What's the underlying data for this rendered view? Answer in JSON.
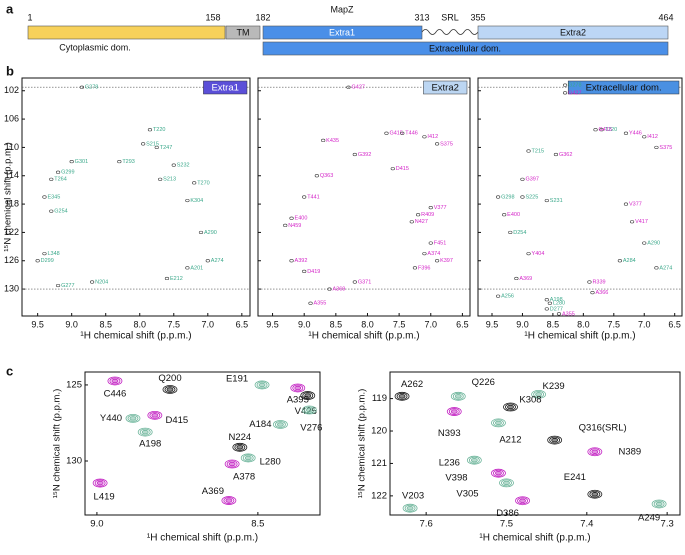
{
  "panel_labels": [
    "a",
    "b",
    "c"
  ],
  "domain_map": {
    "name": "MapZ",
    "residues": [
      1,
      158,
      182,
      313,
      355,
      464
    ],
    "segments": {
      "tm": "TM",
      "extra1": "Extra1",
      "srl": "SRL",
      "extra2": "Extra2",
      "cytoplasmic": "Cytoplasmic dom.",
      "extracellular": "Extracellular dom."
    }
  },
  "chart_data": [
    {
      "type": "scatter",
      "peak_style": "dot",
      "title": "Extra1",
      "title_box_color": "#5b4fd8",
      "title_text_color": "#ffffff",
      "xlabel": "¹H chemical shift (p.p.m.)",
      "ylabel": "¹⁵N chemical shift (p.p.m.)",
      "xlim": [
        6.38,
        9.73
      ],
      "x_inverted": true,
      "ylim": [
        100.2,
        133.8
      ],
      "y_inverted": true,
      "xticks": [
        9.5,
        {
          "value": 9,
          "label": "9.0"
        },
        8.5,
        {
          "value": 8,
          "label": "8.0"
        },
        7.5,
        {
          "value": 7,
          "label": "7.0"
        },
        6.5
      ],
      "yticks": [
        102,
        106,
        110,
        114,
        118,
        122,
        126,
        130
      ],
      "show_ytick_labels": true,
      "hlines": [
        101.5,
        130
      ],
      "labels": [
        "G278",
        "T220",
        "S215",
        "T247",
        "G301",
        "G299",
        "T264",
        "T293",
        "S232",
        "S213",
        "E345",
        "G254",
        "L348",
        "D299",
        "K304",
        "T270",
        "A290",
        "A274",
        "G277",
        "N204",
        "E212",
        "A201"
      ],
      "x": [
        8.85,
        7.85,
        7.95,
        7.75,
        9.0,
        9.2,
        9.3,
        8.3,
        7.5,
        7.7,
        9.4,
        9.3,
        9.4,
        9.5,
        7.3,
        7.2,
        7.1,
        7.0,
        9.2,
        8.7,
        7.6,
        7.3
      ],
      "values": [
        101.5,
        107.5,
        109.5,
        110,
        112,
        113.5,
        114.5,
        112,
        112.5,
        114.5,
        117,
        119,
        125,
        126,
        117.5,
        115,
        122,
        126,
        129.5,
        129,
        128.5,
        127
      ],
      "colors": [
        "#3aa88a",
        "#3aa88a",
        "#3aa88a",
        "#3aa88a",
        "#3aa88a",
        "#3aa88a",
        "#3aa88a",
        "#3aa88a",
        "#3aa88a",
        "#3aa88a",
        "#3aa88a",
        "#3aa88a",
        "#3aa88a",
        "#3aa88a",
        "#3aa88a",
        "#3aa88a",
        "#3aa88a",
        "#3aa88a",
        "#3aa88a",
        "#3aa88a",
        "#3aa88a",
        "#3aa88a"
      ]
    },
    {
      "type": "scatter",
      "peak_style": "dot",
      "title": "Extra2",
      "title_box_color": "#bcd6f2",
      "title_text_color": "#111111",
      "xlabel": "¹H chemical shift (p.p.m.)",
      "xlim": [
        6.38,
        9.73
      ],
      "x_inverted": true,
      "ylim": [
        100.2,
        133.8
      ],
      "y_inverted": true,
      "xticks": [
        9.5,
        {
          "value": 9,
          "label": "9.0"
        },
        8.5,
        {
          "value": 8,
          "label": "8.0"
        },
        7.5,
        {
          "value": 7,
          "label": "7.0"
        },
        6.5
      ],
      "yticks": [
        102,
        106,
        110,
        114,
        118,
        122,
        126,
        130
      ],
      "show_ytick_labels": false,
      "hlines": [
        101.5,
        130
      ],
      "labels": [
        "G427",
        "K435",
        "G415",
        "T446",
        "I412",
        "S375",
        "G392",
        "D415",
        "Q363",
        "T441",
        "E400",
        "N459",
        "V377",
        "R409",
        "N427",
        "F451",
        "A374",
        "K397",
        "A392",
        "D419",
        "F396",
        "A369",
        "G371",
        "A355"
      ],
      "x": [
        8.3,
        8.7,
        7.7,
        7.45,
        7.1,
        6.9,
        8.2,
        7.6,
        8.8,
        9.0,
        9.2,
        9.3,
        7.0,
        7.2,
        7.3,
        7.0,
        7.1,
        6.9,
        9.2,
        9.0,
        7.25,
        8.6,
        8.2,
        8.9
      ],
      "values": [
        101.5,
        109,
        108,
        108,
        108.5,
        109.5,
        111,
        113,
        114,
        117,
        120,
        121,
        118.5,
        119.5,
        120.5,
        123.5,
        125,
        126,
        126,
        127.5,
        127,
        130,
        129,
        132
      ],
      "colors": [
        "#d424c8",
        "#d424c8",
        "#d424c8",
        "#d424c8",
        "#d424c8",
        "#d424c8",
        "#d424c8",
        "#d424c8",
        "#d424c8",
        "#d424c8",
        "#d424c8",
        "#d424c8",
        "#d424c8",
        "#d424c8",
        "#d424c8",
        "#d424c8",
        "#d424c8",
        "#d424c8",
        "#d424c8",
        "#d424c8",
        "#d424c8",
        "#d424c8",
        "#d424c8",
        "#d424c8"
      ]
    },
    {
      "type": "scatter",
      "peak_style": "dot",
      "title": "Extracellular dom.",
      "title_box_color": "#4a90e2",
      "title_text_color": "#111111",
      "xlabel": "¹H chemical shift (p.p.m.)",
      "xlim": [
        6.38,
        9.73
      ],
      "x_inverted": true,
      "ylim": [
        100.2,
        133.8
      ],
      "y_inverted": true,
      "xticks": [
        9.5,
        {
          "value": 9,
          "label": "9.0"
        },
        8.5,
        {
          "value": 8,
          "label": "8.0"
        },
        7.5,
        {
          "value": 7,
          "label": "7.0"
        },
        6.5
      ],
      "yticks": [
        102,
        106,
        110,
        114,
        118,
        122,
        126,
        130
      ],
      "show_ytick_labels": false,
      "hlines": [
        101.5,
        130
      ],
      "labels": [
        "G278",
        "G427",
        "T220",
        "G415",
        "Y446",
        "I412",
        "S375",
        "T215",
        "G362",
        "G397",
        "G298",
        "S225",
        "S231",
        "V377",
        "E400",
        "D254",
        "V417",
        "Y404",
        "A290",
        "A284",
        "A274",
        "A369",
        "R339",
        "A366",
        "A256",
        "A198",
        "L280",
        "D277",
        "A355"
      ],
      "x": [
        8.3,
        8.3,
        7.7,
        7.8,
        7.3,
        7.0,
        6.8,
        8.9,
        8.45,
        9.0,
        9.4,
        9.0,
        8.6,
        7.3,
        9.3,
        9.2,
        7.2,
        8.9,
        7.0,
        7.4,
        6.8,
        9.1,
        7.9,
        7.85,
        9.4,
        8.6,
        8.55,
        8.6,
        8.4
      ],
      "values": [
        101.2,
        102.3,
        107.5,
        107.5,
        108,
        108.5,
        110,
        110.5,
        111,
        114.5,
        117,
        117,
        117.5,
        118,
        119.5,
        122,
        120.5,
        125,
        123.5,
        126,
        127,
        128.5,
        129,
        130.5,
        131,
        131.5,
        132,
        132.8,
        133.5
      ],
      "colors": [
        "#3aa88a",
        "#d424c8",
        "#3aa88a",
        "#d424c8",
        "#d424c8",
        "#d424c8",
        "#d424c8",
        "#3aa88a",
        "#d424c8",
        "#d424c8",
        "#3aa88a",
        "#3aa88a",
        "#3aa88a",
        "#d424c8",
        "#d424c8",
        "#3aa88a",
        "#d424c8",
        "#d424c8",
        "#3aa88a",
        "#3aa88a",
        "#3aa88a",
        "#d424c8",
        "#d424c8",
        "#d424c8",
        "#3aa88a",
        "#3aa88a",
        "#3aa88a",
        "#3aa88a",
        "#d424c8"
      ]
    },
    {
      "type": "scatter",
      "peak_style": "contour",
      "xlabel": "¹H chemical shift (p.p.m.)",
      "ylabel": "¹⁵N chemical shift (p.p.m.)",
      "xlim": [
        8.307,
        9.037
      ],
      "x_inverted": true,
      "ylim": [
        124.15,
        133.55
      ],
      "y_inverted": true,
      "xticks": [
        {
          "value": 9,
          "label": "9.0"
        },
        8.5
      ],
      "yticks": [
        125,
        130
      ],
      "show_ytick_labels": true,
      "labels": [
        "C446",
        "Q200",
        "E191",
        "A395",
        "V425",
        "V276",
        "Y440",
        "D415",
        "A198",
        "A184",
        "N224",
        "L280",
        "A378",
        "L419",
        "A369"
      ],
      "x": [
        8.944,
        8.773,
        8.487,
        8.376,
        8.345,
        8.34,
        8.888,
        8.82,
        8.85,
        8.43,
        8.556,
        8.53,
        8.58,
        8.99,
        8.59
      ],
      "values": [
        124.74,
        125.3,
        125.0,
        125.2,
        125.7,
        126.65,
        127.2,
        127.0,
        128.1,
        127.6,
        129.1,
        129.8,
        130.2,
        131.45,
        132.6
      ],
      "colors": [
        "#c21fc2",
        "#1a1a1a",
        "#6db59b",
        "#c21fc2",
        "#1a1a1a",
        "#6db59b",
        "#6db59b",
        "#c21fc2",
        "#6db59b",
        "#6db59b",
        "#1a1a1a",
        "#6db59b",
        "#c21fc2",
        "#c21fc2",
        "#c21fc2"
      ]
    },
    {
      "type": "scatter",
      "peak_style": "contour",
      "xlabel": "¹H chemical shift (p.p.m.)",
      "ylabel": "¹⁵N chemical shift (p.p.m.)",
      "xlim": [
        7.284,
        7.645
      ],
      "x_inverted": true,
      "ylim": [
        118.18,
        122.59
      ],
      "y_inverted": true,
      "xticks": [
        7.6,
        7.5,
        7.4,
        7.3
      ],
      "yticks": [
        119,
        120,
        121,
        122
      ],
      "show_ytick_labels": true,
      "labels": [
        "A262",
        "Q226",
        "K239",
        "K308",
        "N393",
        "A212",
        "Q316(SRL)",
        "N389",
        "L236",
        "V398",
        "V305",
        "D386",
        "E241",
        "V203",
        "A249"
      ],
      "x": [
        7.63,
        7.56,
        7.46,
        7.495,
        7.565,
        7.51,
        7.44,
        7.39,
        7.54,
        7.51,
        7.5,
        7.48,
        7.39,
        7.62,
        7.31
      ],
      "values": [
        118.93,
        118.93,
        118.87,
        119.26,
        119.4,
        119.75,
        120.28,
        120.64,
        120.9,
        121.3,
        121.6,
        122.15,
        121.95,
        122.38,
        122.25
      ],
      "colors": [
        "#1a1a1a",
        "#6db59b",
        "#6db59b",
        "#1a1a1a",
        "#c21fc2",
        "#6db59b",
        "#1a1a1a",
        "#c21fc2",
        "#6db59b",
        "#c21fc2",
        "#6db59b",
        "#c21fc2",
        "#1a1a1a",
        "#6db59b",
        "#6db59b"
      ]
    }
  ]
}
